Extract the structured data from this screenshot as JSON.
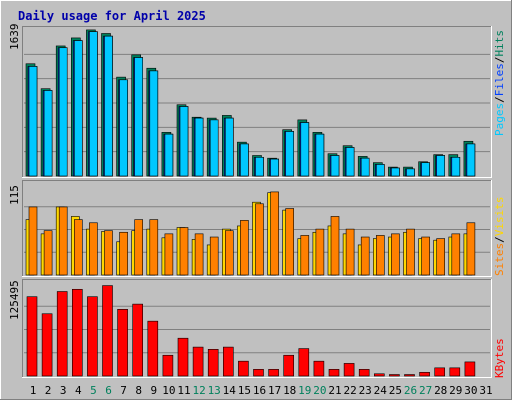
{
  "chart_title": "Daily usage for April 2025",
  "colors": {
    "background": "#c0c0c0",
    "title": "#0000aa",
    "hits": "#00805c",
    "files": "#0040ff",
    "pages": "#00c8ff",
    "visits": "#ffd700",
    "sites": "#ff8000",
    "kbytes": "#ff0000",
    "weekend": "#00805c",
    "weekday": "#000000",
    "slash": "#000000"
  },
  "legend": {
    "hits_pages": [
      "Hits",
      "Files",
      "Pages"
    ],
    "visits_sites": [
      "Visits",
      "Sites"
    ],
    "kbytes": [
      "KBytes"
    ]
  },
  "chart_data": [
    {
      "type": "bar",
      "panel": "hits_files_pages",
      "categories": [
        "1",
        "2",
        "3",
        "4",
        "5",
        "6",
        "7",
        "8",
        "9",
        "10",
        "11",
        "12",
        "13",
        "14",
        "15",
        "16",
        "17",
        "18",
        "19",
        "20",
        "21",
        "22",
        "23",
        "24",
        "25",
        "26",
        "27",
        "28",
        "29",
        "30",
        "31"
      ],
      "ymax_label": "1639",
      "ylim": [
        0,
        1639
      ],
      "series": [
        {
          "name": "Hits",
          "values": [
            1260,
            980,
            1460,
            1550,
            1640,
            1600,
            1110,
            1360,
            1210,
            490,
            800,
            660,
            650,
            680,
            380,
            230,
            200,
            520,
            630,
            490,
            250,
            340,
            220,
            150,
            100,
            100,
            160,
            240,
            240,
            390,
            null
          ]
        },
        {
          "name": "Files",
          "values": [
            1230,
            960,
            1440,
            1520,
            1620,
            1570,
            1080,
            1330,
            1180,
            470,
            780,
            650,
            630,
            650,
            360,
            210,
            190,
            500,
            600,
            470,
            230,
            320,
            200,
            130,
            90,
            80,
            150,
            230,
            210,
            360,
            null
          ]
        },
        {
          "name": "Pages",
          "values": [
            1230,
            960,
            1440,
            1520,
            1620,
            1570,
            1080,
            1330,
            1180,
            470,
            780,
            650,
            630,
            650,
            360,
            210,
            190,
            500,
            600,
            470,
            230,
            320,
            200,
            130,
            90,
            80,
            150,
            230,
            210,
            360,
            null
          ]
        }
      ],
      "weekend_days": [
        "5",
        "6",
        "12",
        "13",
        "19",
        "20",
        "26",
        "27"
      ]
    },
    {
      "type": "bar",
      "panel": "visits_sites",
      "categories": [
        "1",
        "2",
        "3",
        "4",
        "5",
        "6",
        "7",
        "8",
        "9",
        "10",
        "11",
        "12",
        "13",
        "14",
        "15",
        "16",
        "17",
        "18",
        "19",
        "20",
        "21",
        "22",
        "23",
        "24",
        "25",
        "26",
        "27",
        "28",
        "29",
        "30",
        "31"
      ],
      "ymax_label": "115",
      "ylim": [
        0,
        115
      ],
      "series": [
        {
          "name": "Visits",
          "values": [
            70,
            52,
            86,
            74,
            58,
            55,
            42,
            56,
            58,
            47,
            60,
            45,
            38,
            58,
            62,
            92,
            104,
            82,
            46,
            54,
            62,
            52,
            38,
            46,
            48,
            54,
            46,
            44,
            48,
            52,
            null
          ]
        },
        {
          "name": "Sites",
          "values": [
            86,
            56,
            86,
            70,
            66,
            56,
            54,
            70,
            70,
            52,
            60,
            52,
            48,
            56,
            69,
            90,
            105,
            84,
            50,
            58,
            74,
            58,
            48,
            50,
            52,
            58,
            48,
            46,
            52,
            66,
            null
          ]
        }
      ]
    },
    {
      "type": "bar",
      "panel": "kbytes",
      "categories": [
        "1",
        "2",
        "3",
        "4",
        "5",
        "6",
        "7",
        "8",
        "9",
        "10",
        "11",
        "12",
        "13",
        "14",
        "15",
        "16",
        "17",
        "18",
        "19",
        "20",
        "21",
        "22",
        "23",
        "24",
        "25",
        "26",
        "27",
        "28",
        "29",
        "30",
        "31"
      ],
      "ymax_label": "125495",
      "ylim": [
        0,
        125495
      ],
      "series": [
        {
          "name": "KBytes",
          "values": [
            107000,
            84000,
            114000,
            117000,
            107000,
            122000,
            90000,
            97000,
            74000,
            28000,
            51000,
            39000,
            36000,
            39000,
            20000,
            9000,
            9000,
            28000,
            37000,
            20000,
            9000,
            17000,
            9000,
            3000,
            2000,
            2000,
            5000,
            11000,
            11000,
            19000,
            null
          ]
        }
      ]
    }
  ]
}
